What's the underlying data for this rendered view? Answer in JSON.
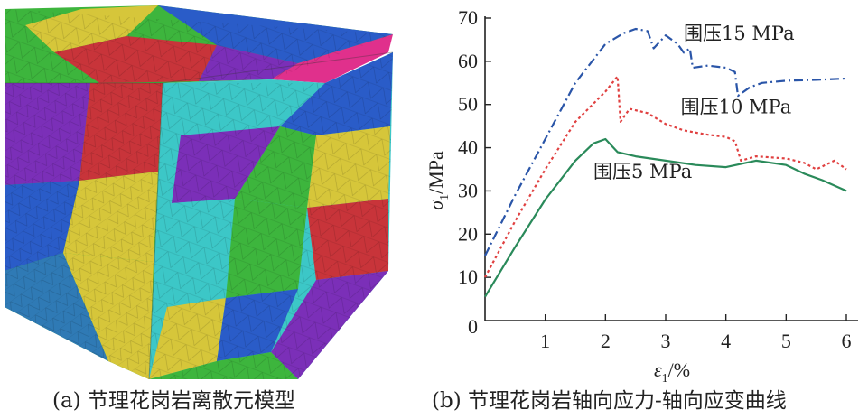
{
  "captions": {
    "a": "(a) 节理花岗岩离散元模型",
    "b": "(b) 节理花岗岩轴向应力-轴向应变曲线"
  },
  "cube_image": {
    "palette": [
      "#c8343a",
      "#2a5cc8",
      "#7b2fb8",
      "#3cc7c7",
      "#3db53d",
      "#d6c63a",
      "#e0308c",
      "#2f7ab5"
    ]
  },
  "chart_data": {
    "type": "line",
    "xlabel_main": "ε",
    "xlabel_sub": "1",
    "xlabel_unit": "/%",
    "ylabel_main": "σ",
    "ylabel_sub": "1",
    "ylabel_unit": "/MPa",
    "xlim": [
      0,
      6
    ],
    "ylim": [
      0,
      70
    ],
    "xticks": [
      "0",
      "1",
      "2",
      "3",
      "4",
      "5",
      "6"
    ],
    "yticks": [
      "10",
      "20",
      "30",
      "40",
      "50",
      "60",
      "70"
    ],
    "origin_label": "0",
    "grid": false,
    "series": [
      {
        "name": "围压15 MPa",
        "color": "#2a55a8",
        "style": "dashdot",
        "points": [
          [
            0,
            15
          ],
          [
            0.5,
            29
          ],
          [
            1,
            42
          ],
          [
            1.5,
            55
          ],
          [
            2,
            64
          ],
          [
            2.3,
            66.5
          ],
          [
            2.5,
            67.5
          ],
          [
            2.7,
            67
          ],
          [
            2.8,
            63
          ],
          [
            3,
            66
          ],
          [
            3.2,
            64
          ],
          [
            3.3,
            62
          ],
          [
            3.4,
            63
          ],
          [
            3.45,
            58.5
          ],
          [
            3.7,
            59
          ],
          [
            4,
            58.5
          ],
          [
            4.15,
            57.5
          ],
          [
            4.2,
            52
          ],
          [
            4.4,
            54
          ],
          [
            4.6,
            55
          ],
          [
            5,
            55.5
          ],
          [
            5.5,
            55.7
          ],
          [
            6,
            56
          ]
        ]
      },
      {
        "name": "围压10 MPa",
        "color": "#e04040",
        "style": "dotted",
        "points": [
          [
            0,
            10
          ],
          [
            0.5,
            23
          ],
          [
            1,
            35
          ],
          [
            1.5,
            46
          ],
          [
            2,
            53
          ],
          [
            2.2,
            56.5
          ],
          [
            2.25,
            46
          ],
          [
            2.4,
            49
          ],
          [
            2.7,
            48
          ],
          [
            3,
            45.5
          ],
          [
            3.3,
            44
          ],
          [
            3.7,
            43
          ],
          [
            4,
            42.5
          ],
          [
            4.15,
            41.5
          ],
          [
            4.25,
            37
          ],
          [
            4.5,
            38
          ],
          [
            5,
            37.5
          ],
          [
            5.3,
            36.5
          ],
          [
            5.5,
            35
          ],
          [
            5.8,
            37
          ],
          [
            6,
            35
          ]
        ]
      },
      {
        "name": "围压5 MPa",
        "color": "#2a8a5a",
        "style": "solid",
        "points": [
          [
            0,
            5.5
          ],
          [
            0.5,
            17
          ],
          [
            1,
            28
          ],
          [
            1.5,
            37
          ],
          [
            1.8,
            41
          ],
          [
            2,
            42
          ],
          [
            2.2,
            39
          ],
          [
            2.5,
            38
          ],
          [
            3,
            37
          ],
          [
            3.5,
            36
          ],
          [
            4,
            35.5
          ],
          [
            4.5,
            37
          ],
          [
            5,
            36
          ],
          [
            5.3,
            34
          ],
          [
            5.6,
            32.5
          ],
          [
            6,
            30
          ]
        ]
      }
    ],
    "annotations": [
      {
        "series": 0,
        "text": "围压15 MPa",
        "x": 3.3,
        "y": 65
      },
      {
        "series": 1,
        "text": "围压10 MPa",
        "x": 3.25,
        "y": 48
      },
      {
        "series": 2,
        "text": "围压5 MPa",
        "x": 1.8,
        "y": 33
      }
    ]
  }
}
